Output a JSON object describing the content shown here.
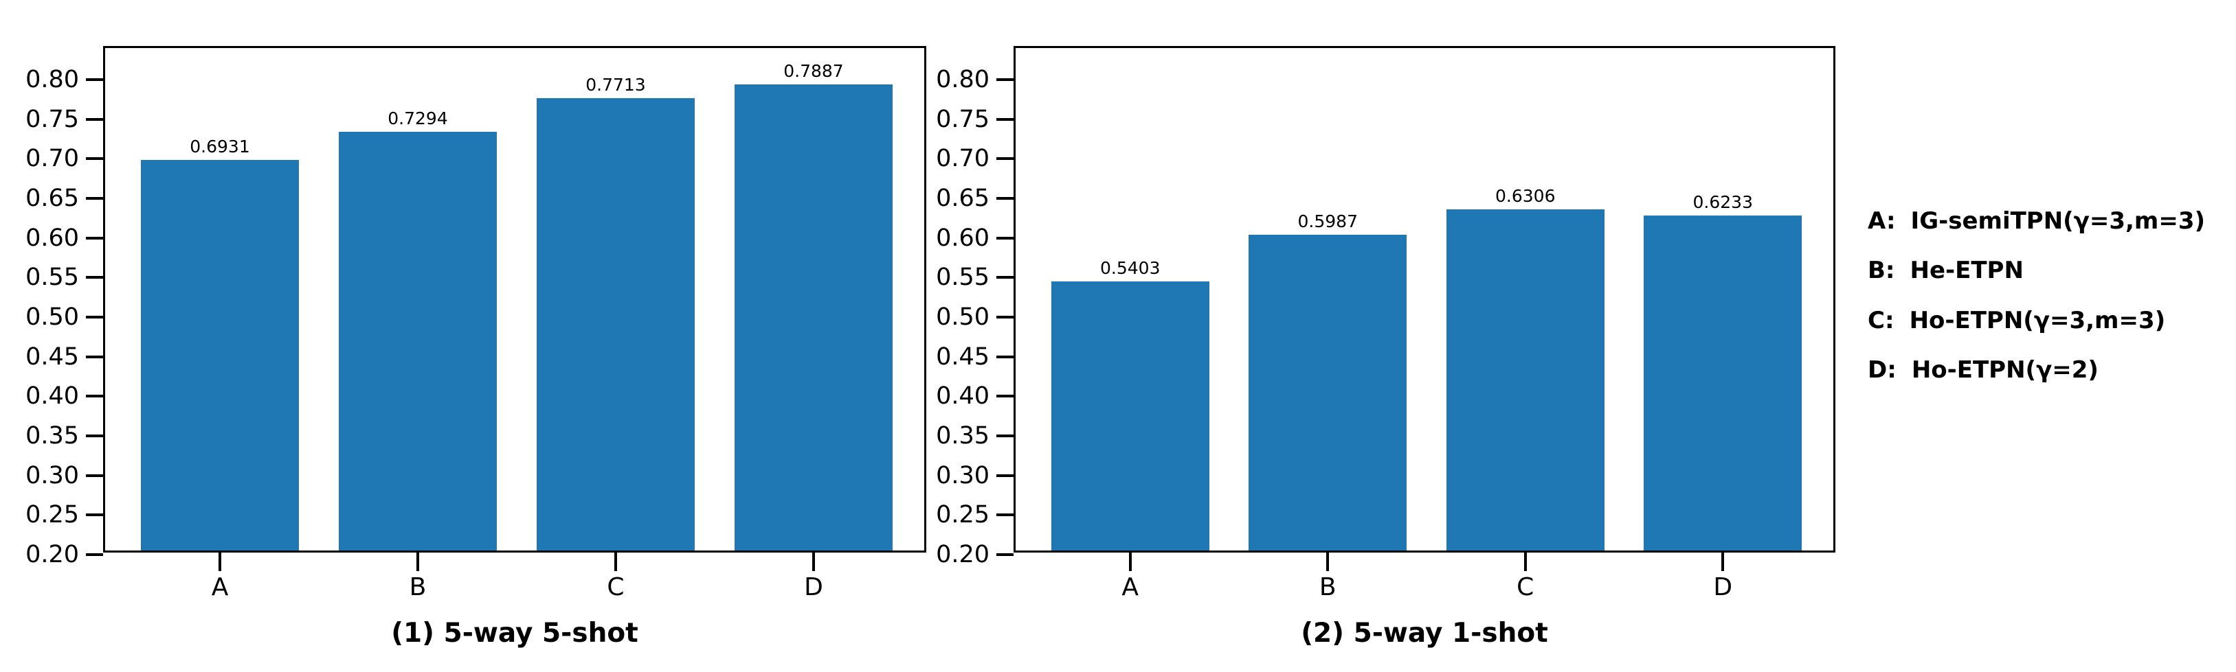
{
  "figure": {
    "background": "#ffffff",
    "bar_color": "#1f77b4",
    "text_color": "#000000"
  },
  "chart_data": [
    {
      "type": "bar",
      "title": "(1) 5-way 5-shot",
      "categories": [
        "A",
        "B",
        "C",
        "D"
      ],
      "values": [
        0.6931,
        0.7294,
        0.7713,
        0.7887
      ],
      "bar_labels": [
        "0.6931",
        "0.7294",
        "0.7713",
        "0.7887"
      ],
      "ylim": [
        0.2,
        0.84
      ],
      "yticks": [
        0.8,
        0.75,
        0.7,
        0.65,
        0.6,
        0.55,
        0.5,
        0.45,
        0.4,
        0.35,
        0.3,
        0.25,
        0.2
      ],
      "ytick_labels": [
        "0.80",
        "0.75",
        "0.70",
        "0.65",
        "0.60",
        "0.55",
        "0.50",
        "0.45",
        "0.40",
        "0.35",
        "0.30",
        "0.25",
        "0.20"
      ],
      "xlabel": "",
      "ylabel": "",
      "grid": false,
      "legend_position": "none",
      "bar_color": "#1f77b4"
    },
    {
      "type": "bar",
      "title": "(2) 5-way 1-shot",
      "categories": [
        "A",
        "B",
        "C",
        "D"
      ],
      "values": [
        0.5403,
        0.5987,
        0.6306,
        0.6233
      ],
      "bar_labels": [
        "0.5403",
        "0.5987",
        "0.6306",
        "0.6233"
      ],
      "ylim": [
        0.2,
        0.84
      ],
      "yticks": [
        0.8,
        0.75,
        0.7,
        0.65,
        0.6,
        0.55,
        0.5,
        0.45,
        0.4,
        0.35,
        0.3,
        0.25,
        0.2
      ],
      "ytick_labels": [
        "0.80",
        "0.75",
        "0.70",
        "0.65",
        "0.60",
        "0.55",
        "0.50",
        "0.45",
        "0.40",
        "0.35",
        "0.30",
        "0.25",
        "0.20"
      ],
      "xlabel": "",
      "ylabel": "",
      "grid": false,
      "legend_position": "none",
      "bar_color": "#1f77b4"
    }
  ],
  "legend": {
    "items": [
      {
        "key": "A:",
        "label": "IG-semiTPN(γ=3,m=3)"
      },
      {
        "key": "B:",
        "label": "He-ETPN"
      },
      {
        "key": "C:",
        "label": "Ho-ETPN(γ=3,m=3)"
      },
      {
        "key": "D:",
        "label": "Ho-ETPN(γ=2)"
      }
    ]
  }
}
